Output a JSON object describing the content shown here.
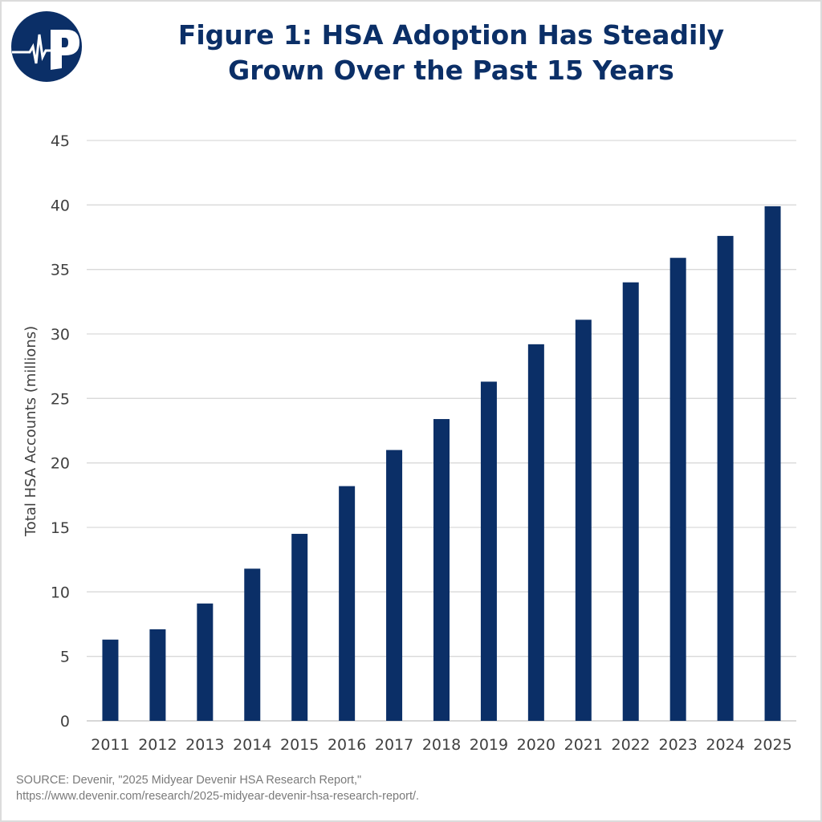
{
  "title_line1": "Figure 1: HSA Adoption Has Steadily",
  "title_line2": "Grown Over the Past 15 Years",
  "logo": {
    "icon": "heartbeat-p-logo",
    "color": "#0b2f67"
  },
  "source_line1": "SOURCE: Devenir, \"2025 Midyear Devenir HSA Research Report,\"",
  "source_line2": "https://www.devenir.com/research/2025-midyear-devenir-hsa-research-report/.",
  "chart_data": {
    "type": "bar",
    "title": "Figure 1: HSA Adoption Has Steadily Grown Over the Past 15 Years",
    "xlabel": "",
    "ylabel": "Total HSA Accounts (millions)",
    "ylim": [
      0,
      45
    ],
    "yticks": [
      0,
      5,
      10,
      15,
      20,
      25,
      30,
      35,
      40,
      45
    ],
    "grid": true,
    "bar_color": "#0b2f67",
    "categories": [
      "2011",
      "2012",
      "2013",
      "2014",
      "2015",
      "2016",
      "2017",
      "2018",
      "2019",
      "2020",
      "2021",
      "2022",
      "2023",
      "2024",
      "2025"
    ],
    "values": [
      6.3,
      7.1,
      9.1,
      11.8,
      14.5,
      18.2,
      21.0,
      23.4,
      26.3,
      29.2,
      31.1,
      34.0,
      35.9,
      37.6,
      39.9
    ]
  }
}
